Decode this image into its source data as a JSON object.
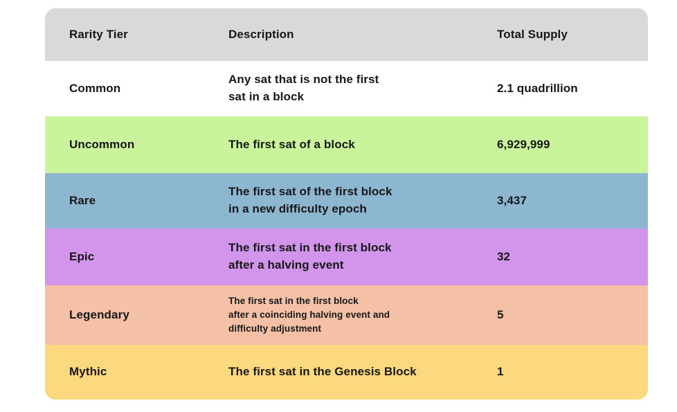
{
  "colors": {
    "page_bg": "#ffffff",
    "header_bg": "#d9d9d9",
    "text": "#171717",
    "row_common_bg": "#ffffff",
    "row_uncommon_bg": "#c9f49c",
    "row_rare_bg": "#8db6d0",
    "row_epic_bg": "#d394ec",
    "row_legendary_bg": "#f4c0a6",
    "row_mythic_bg": "#fcd87e"
  },
  "table": {
    "headers": {
      "tier": "Rarity Tier",
      "description": "Description",
      "supply": "Total Supply"
    },
    "rows": [
      {
        "tier": "Common",
        "description": "Any sat that is not the first\nsat in a block",
        "supply": "2.1 quadrillion",
        "bg": "#ffffff"
      },
      {
        "tier": "Uncommon",
        "description": "The first sat of a block",
        "supply": "6,929,999",
        "bg": "#c9f49c"
      },
      {
        "tier": "Rare",
        "description": "The first sat of the first block\nin a new difficulty epoch",
        "supply": "3,437",
        "bg": "#8db6d0"
      },
      {
        "tier": "Epic",
        "description": "The first sat in the first block\nafter a halving event",
        "supply": "32",
        "bg": "#d394ec"
      },
      {
        "tier": "Legendary",
        "description": "The first sat in the first block\nafter a coinciding halving event and\ndifficulty adjustment",
        "supply": "5",
        "bg": "#f4c0a6"
      },
      {
        "tier": "Mythic",
        "description": "The first sat in the Genesis Block",
        "supply": "1",
        "bg": "#fcd87e"
      }
    ]
  },
  "chart_data": {
    "type": "table",
    "columns": [
      "Rarity Tier",
      "Description",
      "Total Supply"
    ],
    "rows": [
      [
        "Common",
        "Any sat that is not the first sat in a block",
        "2.1 quadrillion"
      ],
      [
        "Uncommon",
        "The first sat of a block",
        "6,929,999"
      ],
      [
        "Rare",
        "The first sat of the first block in a new difficulty epoch",
        "3,437"
      ],
      [
        "Epic",
        "The first sat in the first block after a halving event",
        "32"
      ],
      [
        "Legendary",
        "The first sat in the first block after a coinciding halving event and difficulty adjustment",
        "5"
      ],
      [
        "Mythic",
        "The first sat in the Genesis Block",
        "1"
      ]
    ],
    "legend_position": "none",
    "grid": false
  }
}
